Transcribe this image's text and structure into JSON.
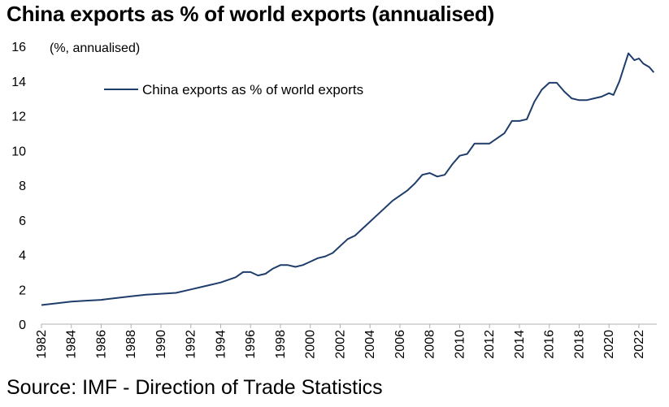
{
  "title": "China exports as % of world exports (annualised)",
  "source": "Source: IMF - Direction of Trade Statistics",
  "chart_data": {
    "type": "line",
    "title": "China exports as % of world exports (annualised)",
    "unit_label": "(%, annualised)",
    "xlabel": "",
    "ylabel": "",
    "xlim": [
      1982,
      2023.2
    ],
    "ylim": [
      0,
      16
    ],
    "y_ticks": [
      0,
      2,
      4,
      6,
      8,
      10,
      12,
      14,
      16
    ],
    "x_ticks": [
      "1982",
      "1984",
      "1986",
      "1988",
      "1990",
      "1992",
      "1994",
      "1996",
      "1998",
      "2000",
      "2002",
      "2004",
      "2006",
      "2008",
      "2010",
      "2012",
      "2014",
      "2016",
      "2018",
      "2020",
      "2022"
    ],
    "grid": false,
    "legend_position": "top-left",
    "colors": {
      "series": "#1f3d6b",
      "axis": "#b0b0b0"
    },
    "series": [
      {
        "name": "China exports as % of world exports",
        "x": [
          1982.0,
          1983.0,
          1984.0,
          1985.0,
          1986.0,
          1987.0,
          1988.0,
          1989.0,
          1990.0,
          1991.0,
          1992.0,
          1993.0,
          1994.0,
          1995.0,
          1995.5,
          1996.0,
          1996.5,
          1997.0,
          1997.5,
          1998.0,
          1998.5,
          1999.0,
          1999.5,
          2000.0,
          2000.5,
          2001.0,
          2001.5,
          2002.0,
          2002.5,
          2003.0,
          2003.5,
          2004.0,
          2004.5,
          2005.0,
          2005.5,
          2006.0,
          2006.5,
          2007.0,
          2007.5,
          2008.0,
          2008.5,
          2009.0,
          2009.5,
          2010.0,
          2010.5,
          2011.0,
          2011.5,
          2012.0,
          2012.5,
          2013.0,
          2013.5,
          2014.0,
          2014.5,
          2015.0,
          2015.5,
          2016.0,
          2016.5,
          2017.0,
          2017.5,
          2018.0,
          2018.5,
          2019.0,
          2019.5,
          2020.0,
          2020.3,
          2020.7,
          2021.0,
          2021.3,
          2021.7,
          2022.0,
          2022.3,
          2022.7,
          2023.0
        ],
        "values": [
          1.1,
          1.2,
          1.3,
          1.35,
          1.4,
          1.5,
          1.6,
          1.7,
          1.75,
          1.8,
          2.0,
          2.2,
          2.4,
          2.7,
          3.0,
          3.0,
          2.8,
          2.9,
          3.2,
          3.4,
          3.4,
          3.3,
          3.4,
          3.6,
          3.8,
          3.9,
          4.1,
          4.5,
          4.9,
          5.1,
          5.5,
          5.9,
          6.3,
          6.7,
          7.1,
          7.4,
          7.7,
          8.1,
          8.6,
          8.7,
          8.5,
          8.6,
          9.2,
          9.7,
          9.8,
          10.4,
          10.4,
          10.4,
          10.7,
          11.0,
          11.7,
          11.7,
          11.8,
          12.8,
          13.5,
          13.9,
          13.9,
          13.4,
          13.0,
          12.9,
          12.9,
          13.0,
          13.1,
          13.3,
          13.2,
          14.0,
          14.8,
          15.6,
          15.2,
          15.3,
          15.0,
          14.8,
          14.5
        ]
      }
    ]
  }
}
